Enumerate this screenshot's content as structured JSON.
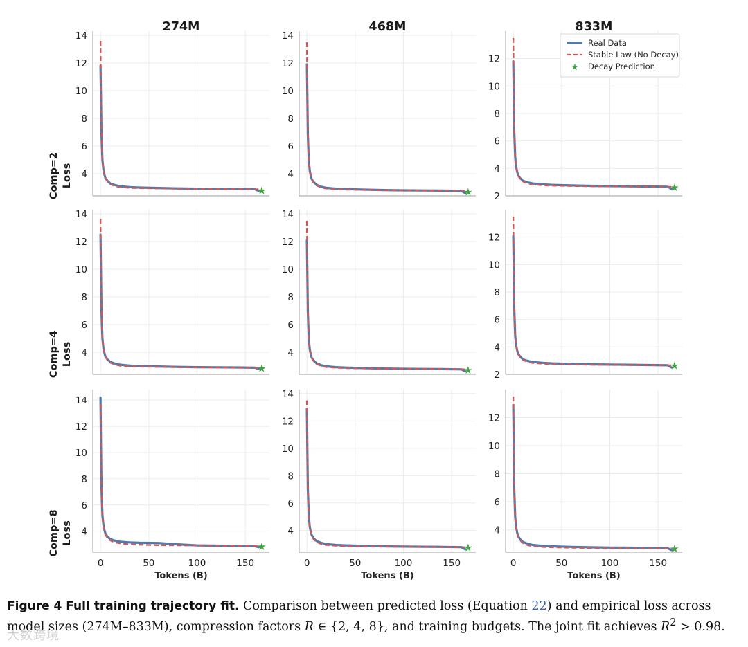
{
  "chart_data": {
    "type": "line",
    "layout": "3x3 grid",
    "columns": [
      "274M",
      "468M",
      "833M"
    ],
    "rows": [
      "Comp=2",
      "Comp=4",
      "Comp=8"
    ],
    "ylabel": "Loss",
    "xlabel": "Tokens (B)",
    "x_ticks": [
      0,
      50,
      100,
      150
    ],
    "xlim": [
      -8,
      175
    ],
    "legend": {
      "location": "top-right",
      "panel": "Comp=2 / 833M",
      "entries": [
        "Real Data",
        "Stable Law (No Decay)",
        "Decay Prediction"
      ]
    },
    "series_style": {
      "real": {
        "name": "Real Data",
        "color": "#4c7bb0",
        "style": "solid"
      },
      "stable": {
        "name": "Stable Law (No Decay)",
        "color": "#cc5a5a",
        "style": "dashed"
      },
      "decay": {
        "name": "Decay Prediction",
        "color": "#3fa33f",
        "marker": "star"
      }
    },
    "curve_x": [
      0,
      0.5,
      1,
      2,
      3,
      4,
      5,
      7,
      10,
      15,
      20,
      30,
      40,
      60,
      80,
      100,
      120,
      140,
      160,
      164
    ],
    "panels": [
      {
        "row": "Comp=2",
        "col": "274M",
        "ylim": [
          2.4,
          14.3
        ],
        "yticks": [
          4,
          6,
          8,
          10,
          12,
          14
        ],
        "real_y": [
          11.8,
          9.5,
          6.9,
          5.0,
          4.3,
          3.95,
          3.7,
          3.5,
          3.3,
          3.18,
          3.1,
          3.03,
          3.0,
          2.97,
          2.94,
          2.92,
          2.91,
          2.9,
          2.88,
          2.75
        ],
        "stable_y": [
          13.6,
          10.0,
          7.1,
          5.0,
          4.3,
          3.95,
          3.7,
          3.45,
          3.25,
          3.1,
          3.03,
          2.98,
          2.96,
          2.94,
          2.92,
          2.91,
          2.9,
          2.89,
          2.88,
          2.87
        ],
        "decay_point": [
          167,
          2.78
        ]
      },
      {
        "row": "Comp=2",
        "col": "468M",
        "ylim": [
          2.4,
          14.3
        ],
        "yticks": [
          4,
          6,
          8,
          10,
          12,
          14
        ],
        "real_y": [
          11.9,
          9.4,
          6.8,
          4.9,
          4.2,
          3.85,
          3.6,
          3.4,
          3.2,
          3.06,
          2.98,
          2.92,
          2.89,
          2.85,
          2.82,
          2.8,
          2.79,
          2.78,
          2.76,
          2.6
        ],
        "stable_y": [
          13.5,
          10.0,
          7.0,
          4.9,
          4.2,
          3.85,
          3.6,
          3.35,
          3.15,
          3.0,
          2.93,
          2.88,
          2.85,
          2.83,
          2.81,
          2.8,
          2.79,
          2.78,
          2.77,
          2.76
        ],
        "decay_point": [
          167,
          2.68
        ]
      },
      {
        "row": "Comp=2",
        "col": "833M",
        "ylim": [
          2.0,
          14.0
        ],
        "yticks": [
          2,
          4,
          6,
          8,
          10,
          12
        ],
        "real_y": [
          11.8,
          9.3,
          6.7,
          4.8,
          4.1,
          3.75,
          3.5,
          3.3,
          3.1,
          2.98,
          2.9,
          2.84,
          2.8,
          2.76,
          2.73,
          2.71,
          2.7,
          2.68,
          2.66,
          2.5
        ],
        "stable_y": [
          13.5,
          9.9,
          6.9,
          4.8,
          4.1,
          3.75,
          3.5,
          3.25,
          3.05,
          2.9,
          2.83,
          2.78,
          2.75,
          2.72,
          2.7,
          2.69,
          2.68,
          2.67,
          2.66,
          2.65
        ],
        "decay_point": [
          167,
          2.6
        ]
      },
      {
        "row": "Comp=4",
        "col": "274M",
        "ylim": [
          2.4,
          14.3
        ],
        "yticks": [
          4,
          6,
          8,
          10,
          12,
          14
        ],
        "real_y": [
          12.5,
          9.8,
          7.0,
          5.0,
          4.3,
          3.95,
          3.7,
          3.5,
          3.3,
          3.18,
          3.1,
          3.03,
          3.0,
          2.97,
          2.94,
          2.92,
          2.91,
          2.9,
          2.88,
          2.78
        ],
        "stable_y": [
          13.6,
          10.1,
          7.1,
          5.0,
          4.3,
          3.95,
          3.7,
          3.45,
          3.25,
          3.1,
          3.03,
          2.98,
          2.96,
          2.94,
          2.92,
          2.91,
          2.9,
          2.89,
          2.88,
          2.87
        ],
        "decay_point": [
          167,
          2.82
        ]
      },
      {
        "row": "Comp=4",
        "col": "468M",
        "ylim": [
          2.4,
          14.3
        ],
        "yticks": [
          4,
          6,
          8,
          10,
          12,
          14
        ],
        "real_y": [
          12.1,
          9.5,
          6.9,
          4.9,
          4.2,
          3.85,
          3.6,
          3.4,
          3.2,
          3.06,
          2.98,
          2.92,
          2.89,
          2.85,
          2.82,
          2.8,
          2.79,
          2.78,
          2.76,
          2.62
        ],
        "stable_y": [
          13.5,
          10.0,
          7.0,
          4.9,
          4.2,
          3.85,
          3.6,
          3.35,
          3.15,
          3.0,
          2.93,
          2.88,
          2.85,
          2.83,
          2.81,
          2.8,
          2.79,
          2.78,
          2.77,
          2.76
        ],
        "decay_point": [
          167,
          2.7
        ]
      },
      {
        "row": "Comp=4",
        "col": "833M",
        "ylim": [
          2.0,
          14.0
        ],
        "yticks": [
          2,
          4,
          6,
          8,
          10,
          12
        ],
        "real_y": [
          12.1,
          9.4,
          6.8,
          4.8,
          4.1,
          3.75,
          3.5,
          3.3,
          3.1,
          2.98,
          2.9,
          2.84,
          2.8,
          2.76,
          2.73,
          2.71,
          2.7,
          2.68,
          2.66,
          2.5
        ],
        "stable_y": [
          13.5,
          9.9,
          6.9,
          4.8,
          4.1,
          3.75,
          3.5,
          3.25,
          3.05,
          2.9,
          2.83,
          2.78,
          2.75,
          2.72,
          2.7,
          2.69,
          2.68,
          2.67,
          2.66,
          2.65
        ],
        "decay_point": [
          167,
          2.62
        ]
      },
      {
        "row": "Comp=8",
        "col": "274M",
        "ylim": [
          2.4,
          14.8
        ],
        "yticks": [
          4,
          6,
          8,
          10,
          12,
          14
        ],
        "real_y": [
          14.2,
          10.5,
          7.4,
          5.2,
          4.5,
          4.1,
          3.85,
          3.6,
          3.4,
          3.28,
          3.2,
          3.15,
          3.12,
          3.1,
          3.0,
          2.92,
          2.9,
          2.88,
          2.86,
          2.78
        ],
        "stable_y": [
          13.7,
          10.2,
          7.2,
          5.1,
          4.4,
          4.0,
          3.75,
          3.5,
          3.3,
          3.15,
          3.08,
          3.0,
          2.97,
          2.94,
          2.92,
          2.91,
          2.9,
          2.89,
          2.88,
          2.87
        ],
        "decay_point": [
          167,
          2.82
        ]
      },
      {
        "row": "Comp=8",
        "col": "468M",
        "ylim": [
          2.4,
          14.3
        ],
        "yticks": [
          4,
          6,
          8,
          10,
          12,
          14
        ],
        "real_y": [
          12.9,
          9.8,
          7.0,
          5.0,
          4.25,
          3.9,
          3.65,
          3.42,
          3.22,
          3.08,
          3.0,
          2.93,
          2.9,
          2.86,
          2.83,
          2.81,
          2.8,
          2.79,
          2.77,
          2.62
        ],
        "stable_y": [
          13.5,
          10.0,
          7.0,
          4.9,
          4.2,
          3.85,
          3.6,
          3.35,
          3.15,
          3.0,
          2.93,
          2.88,
          2.85,
          2.83,
          2.81,
          2.8,
          2.79,
          2.78,
          2.77,
          2.76
        ],
        "decay_point": [
          167,
          2.72
        ]
      },
      {
        "row": "Comp=8",
        "col": "833M",
        "ylim": [
          2.4,
          14.0
        ],
        "yticks": [
          4,
          6,
          8,
          10,
          12
        ],
        "real_y": [
          12.9,
          9.7,
          6.9,
          4.9,
          4.15,
          3.8,
          3.55,
          3.34,
          3.13,
          3.0,
          2.92,
          2.86,
          2.82,
          2.78,
          2.75,
          2.73,
          2.72,
          2.7,
          2.68,
          2.55
        ],
        "stable_y": [
          13.5,
          9.9,
          6.9,
          4.8,
          4.1,
          3.75,
          3.5,
          3.25,
          3.05,
          2.9,
          2.83,
          2.78,
          2.75,
          2.72,
          2.7,
          2.69,
          2.68,
          2.67,
          2.66,
          2.65
        ],
        "decay_point": [
          167,
          2.65
        ]
      }
    ]
  },
  "caption": {
    "lead": "Figure 4  Full training trajectory fit.",
    "t1": " Comparison between predicted loss (Equation ",
    "ref": "22",
    "t2": ") and empirical loss across model sizes (274M–833M), compression factors ",
    "var_R": "R",
    "t3": " ∈ {2, 4, 8}, and training budgets. The joint fit achieves ",
    "var_R2": "R",
    "sup": "2",
    "t4": " > 0.98."
  },
  "watermark": "大数跨境"
}
